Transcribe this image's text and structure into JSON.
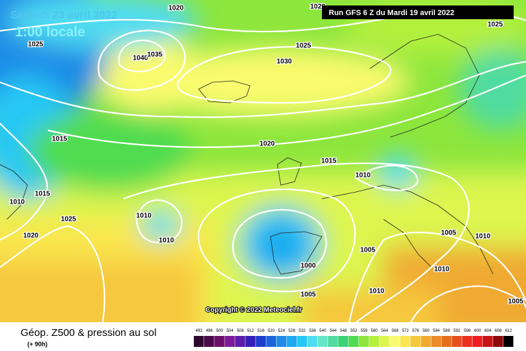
{
  "header": {
    "date": "Samedi 23 avril 2022",
    "time": "1:00 locale",
    "run": "Run GFS 6 Z du Mardi 19 avril 2022"
  },
  "isobar_labels": [
    "1020",
    "1020",
    "1025",
    "1025",
    "1040",
    "1035",
    "1025",
    "1030",
    "1015",
    "1020",
    "1015",
    "1010",
    "1010",
    "1015",
    "1025",
    "1010",
    "1020",
    "1010",
    "1005",
    "1010",
    "1005",
    "1000",
    "1010",
    "1005",
    "1010",
    "1005"
  ],
  "copyright": "Copyright © 2022 Meteociel.fr",
  "footer": {
    "title": "Géop. Z500 & pression au sol",
    "lead": "(+ 90h)"
  },
  "scale": {
    "values": [
      492,
      496,
      500,
      504,
      508,
      512,
      516,
      520,
      524,
      528,
      532,
      536,
      540,
      544,
      548,
      552,
      556,
      560,
      564,
      568,
      572,
      576,
      580,
      584,
      588,
      592,
      596,
      600,
      604,
      608,
      612
    ],
    "colors": [
      "#2d0a2d",
      "#4b0a4b",
      "#6a0f6a",
      "#7d1a9a",
      "#5a1ea8",
      "#3220b8",
      "#1e3ccc",
      "#1e64dc",
      "#1e8ce6",
      "#1eaaf0",
      "#28c8f5",
      "#50dcf0",
      "#64e6c8",
      "#50dca0",
      "#3cd278",
      "#50dc50",
      "#8ce63c",
      "#b4f03c",
      "#dcf550",
      "#fafa6e",
      "#fae650",
      "#f5c83c",
      "#f0aa32",
      "#eb8c28",
      "#e66e1e",
      "#e6501e",
      "#eb321e",
      "#f01e1e",
      "#c81414",
      "#8c0a0a",
      "#000000"
    ]
  }
}
